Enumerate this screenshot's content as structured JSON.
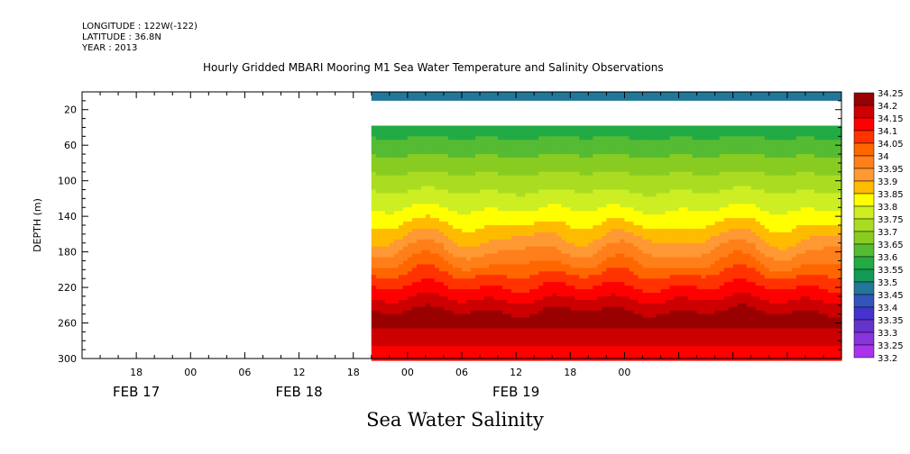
{
  "header": {
    "lines": [
      "LONGITUDE : 122W(-122)",
      "LATITUDE : 36.8N",
      "YEAR : 2013"
    ],
    "title": "Hourly Gridded MBARI Mooring M1 Sea Water Temperature and Salinity Observations"
  },
  "chart_data": {
    "type": "heatmap",
    "title": "Sea Water Salinity",
    "ylabel": "DEPTH (m)",
    "xlabel": "",
    "y_reversed": true,
    "ylim": [
      300,
      0
    ],
    "xlim_hours": [
      -12,
      72
    ],
    "y_ticks": [
      20,
      60,
      100,
      140,
      180,
      220,
      260,
      300
    ],
    "x_tick_labels": [
      {
        "hour": -6,
        "label": "18"
      },
      {
        "hour": 0,
        "label": "00"
      },
      {
        "hour": 6,
        "label": "06"
      },
      {
        "hour": 12,
        "label": "12"
      },
      {
        "hour": 18,
        "label": "18"
      },
      {
        "hour": 24,
        "label": "00"
      },
      {
        "hour": 30,
        "label": "06"
      },
      {
        "hour": 36,
        "label": "12"
      },
      {
        "hour": 42,
        "label": "18"
      },
      {
        "hour": 48,
        "label": "00"
      }
    ],
    "date_labels": [
      {
        "hour": -6,
        "label": "FEB 17"
      },
      {
        "hour": 12,
        "label": "FEB 18"
      },
      {
        "hour": 36,
        "label": "FEB 19"
      }
    ],
    "data_start_hour": 20,
    "data_end_hour": 72,
    "gap_depths": [
      10,
      30
    ],
    "surface_value": 33.45,
    "legend": [
      34.25,
      34.2,
      34.15,
      34.1,
      34.05,
      34,
      33.95,
      33.9,
      33.85,
      33.8,
      33.75,
      33.7,
      33.65,
      33.6,
      33.55,
      33.5,
      33.45,
      33.4,
      33.35,
      33.3,
      33.25,
      33.2
    ],
    "legend_colors": [
      "#990000",
      "#cc0000",
      "#ff0000",
      "#ff3300",
      "#ff6600",
      "#ff7f1a",
      "#ff9933",
      "#ffbb00",
      "#ffff00",
      "#ccee22",
      "#aadd22",
      "#88cc22",
      "#55bb33",
      "#22aa44",
      "#119955",
      "#227799",
      "#3355bb",
      "#4433cc",
      "#6633cc",
      "#8833dd",
      "#aa33ee",
      "#cc00ff"
    ]
  }
}
